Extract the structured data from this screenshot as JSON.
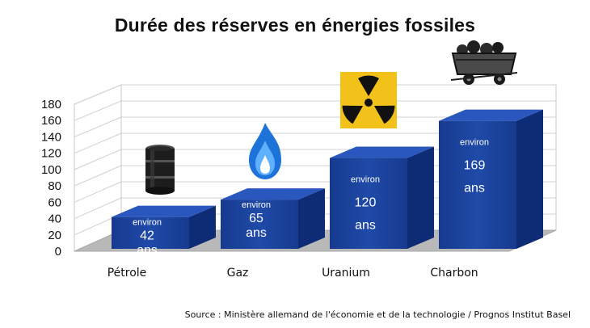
{
  "chart_data": {
    "type": "bar",
    "title": "Durée des réserves en énergies fossiles",
    "categories": [
      "Pétrole",
      "Gaz",
      "Uranium",
      "Charbon"
    ],
    "values": [
      42,
      65,
      120,
      169
    ],
    "prefix_label": "environ",
    "unit_label": "ans",
    "yticks": [
      "0",
      "20",
      "40",
      "60",
      "80",
      "100",
      "120",
      "140",
      "160",
      "180"
    ],
    "ylim": [
      0,
      180
    ],
    "grid": true,
    "bar_color": "#1a3f9a",
    "source": "Source : Ministère allemand de l'économie et de la technologie / Prognos Institut Basel",
    "icons": [
      "oil-barrel-icon",
      "gas-flame-icon",
      "radiation-icon",
      "coal-cart-icon"
    ]
  }
}
